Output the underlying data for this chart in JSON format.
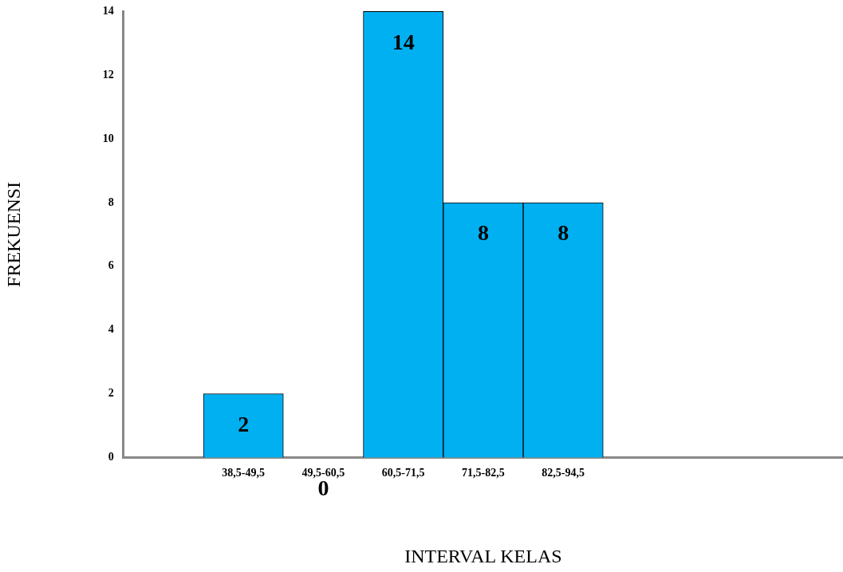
{
  "chart_data": {
    "type": "bar",
    "xlabel": "INTERVAL KELAS",
    "ylabel": "FREKUENSI",
    "categories": [
      null,
      "38,5-49,5",
      "49,5-60,5",
      "60,5-71,5",
      "71,5-82,5",
      "82,5-94,5",
      null,
      null,
      null
    ],
    "values": [
      null,
      2,
      0,
      14,
      8,
      8,
      null,
      null,
      null
    ],
    "color": "#00b0f0",
    "ylim": [
      0,
      14
    ],
    "yticks": [
      0,
      2,
      4,
      6,
      8,
      10,
      12,
      14
    ],
    "grid": false,
    "legend": false,
    "data_labels": true
  }
}
